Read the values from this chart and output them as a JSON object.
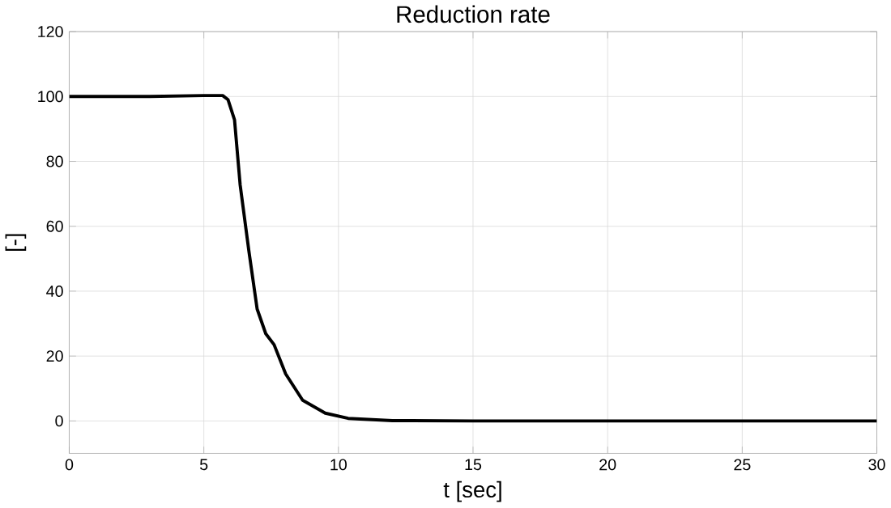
{
  "chart_data": {
    "type": "line",
    "title": "Reduction rate",
    "xlabel": "t [sec]",
    "ylabel": "[-]",
    "x": [
      0,
      3,
      5,
      5.7,
      5.9,
      6.14,
      6.35,
      6.67,
      6.98,
      7.3,
      7.61,
      8.04,
      8.67,
      9.51,
      10.36,
      12,
      15,
      30
    ],
    "series": [
      {
        "color": "#000000",
        "values": [
          100,
          100,
          100.3,
          100.3,
          99,
          92.8,
          72.7,
          52.6,
          34.5,
          26.9,
          23.5,
          14.5,
          6.4,
          2.4,
          0.8,
          0.1,
          0,
          0
        ]
      }
    ],
    "xlim": [
      0,
      30
    ],
    "ylim": [
      -10,
      120
    ],
    "xticks": [
      0,
      5,
      10,
      15,
      20,
      25,
      30
    ],
    "yticks": [
      0,
      20,
      40,
      60,
      80,
      100,
      120
    ],
    "grid": true,
    "line_style": "solid",
    "marker": "none"
  }
}
